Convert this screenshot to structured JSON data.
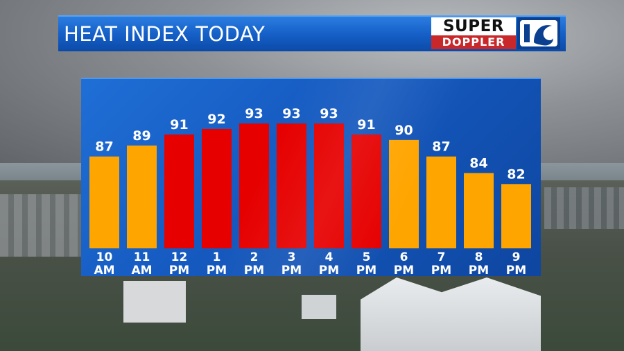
{
  "header": {
    "title": "HEAT INDEX TODAY"
  },
  "logo": {
    "top_text": "SUPER",
    "bottom_text": "DOPPLER",
    "mark_text": "10"
  },
  "colors": {
    "orange": "#ffa500",
    "red": "#e60000",
    "panel_blue": "#1559bf",
    "title_blue": "#1560c8"
  },
  "chart_data": {
    "type": "bar",
    "title": "HEAT INDEX TODAY",
    "categories": [
      [
        "10",
        "AM"
      ],
      [
        "11",
        "AM"
      ],
      [
        "12",
        "PM"
      ],
      [
        "1",
        "PM"
      ],
      [
        "2",
        "PM"
      ],
      [
        "3",
        "PM"
      ],
      [
        "4",
        "PM"
      ],
      [
        "5",
        "PM"
      ],
      [
        "6",
        "PM"
      ],
      [
        "7",
        "PM"
      ],
      [
        "8",
        "PM"
      ],
      [
        "9",
        "PM"
      ]
    ],
    "values": [
      87,
      89,
      91,
      92,
      93,
      93,
      93,
      91,
      90,
      87,
      84,
      82
    ],
    "bar_colors": [
      "orange",
      "orange",
      "red",
      "red",
      "red",
      "red",
      "red",
      "red",
      "orange",
      "orange",
      "orange",
      "orange"
    ],
    "xlabel": "",
    "ylabel": "",
    "grid": false,
    "legend": "none"
  }
}
